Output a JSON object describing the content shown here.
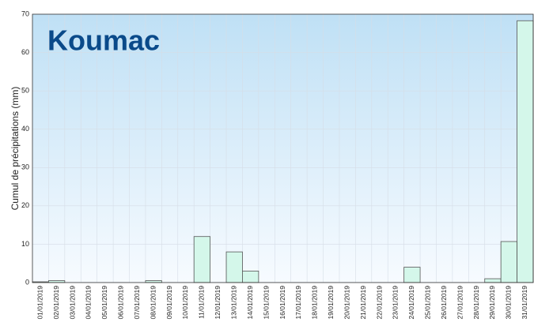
{
  "chart_data": {
    "type": "bar",
    "title": "Koumac",
    "ylabel": "Cumul de précipitations (mm)",
    "categories": [
      "01/01/2019",
      "02/01/2019",
      "03/01/2019",
      "04/01/2019",
      "05/01/2019",
      "06/01/2019",
      "07/01/2019",
      "08/01/2019",
      "09/01/2019",
      "10/01/2019",
      "11/01/2019",
      "12/01/2019",
      "13/01/2019",
      "14/01/2019",
      "15/01/2019",
      "16/01/2019",
      "17/01/2019",
      "18/01/2019",
      "19/01/2019",
      "20/01/2019",
      "21/01/2019",
      "22/01/2019",
      "23/01/2019",
      "24/01/2019",
      "25/01/2019",
      "26/01/2019",
      "27/01/2019",
      "28/01/2019",
      "29/01/2019",
      "30/01/2019",
      "31/01/2019"
    ],
    "values": [
      0.2,
      0.5,
      0,
      0,
      0,
      0,
      0,
      0.5,
      0,
      0,
      12,
      0,
      8,
      3,
      0,
      0,
      0,
      0,
      0,
      0,
      0,
      0,
      0,
      4,
      0,
      0,
      0,
      0,
      1,
      10.7,
      68.3
    ],
    "color": "#d4f7ea",
    "ylim": [
      0,
      70
    ],
    "yticks": [
      0,
      10,
      20,
      30,
      40,
      50,
      60,
      70
    ],
    "grid": true
  }
}
